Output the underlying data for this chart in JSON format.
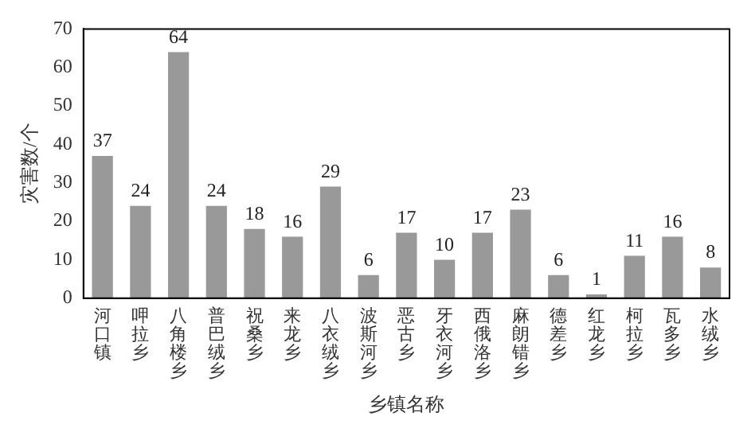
{
  "chart_data": {
    "type": "bar",
    "xlabel": "乡镇名称",
    "ylabel": "灾害数/个",
    "categories": [
      "河口镇",
      "呷拉乡",
      "八角楼乡",
      "普巴绒乡",
      "祝桑乡",
      "来龙乡",
      "八衣绒乡",
      "波斯河乡",
      "恶古乡",
      "牙衣河乡",
      "西俄洛乡",
      "麻朗错乡",
      "德差乡",
      "红龙乡",
      "柯拉乡",
      "瓦多乡",
      "水绒乡"
    ],
    "values": [
      37,
      24,
      64,
      24,
      18,
      16,
      29,
      6,
      17,
      10,
      17,
      23,
      6,
      1,
      11,
      16,
      8
    ],
    "color": "#999999",
    "ylim": [
      0,
      70
    ],
    "yticks": [
      0,
      10,
      20,
      30,
      40,
      50,
      60,
      70
    ],
    "data_labels": true,
    "grid": false,
    "legend": false
  }
}
